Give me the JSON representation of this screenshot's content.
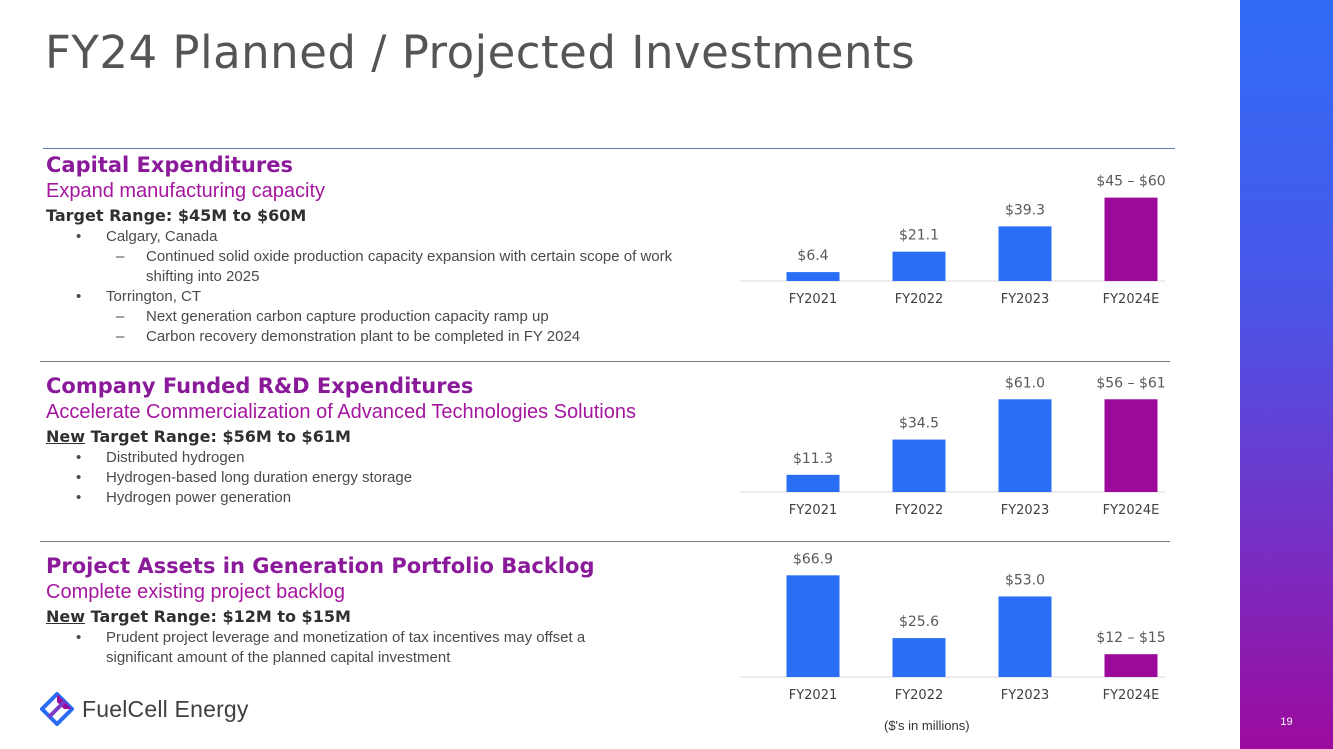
{
  "title": "FY24 Planned / Projected Investments",
  "page_number": "19",
  "colors": {
    "accent_blue": "#2a6ef5",
    "accent_purple": "#9b0a9b",
    "heading_purple": "#8b1a9b"
  },
  "sections": [
    {
      "heading": "Capital Expenditures",
      "subheading": "Expand manufacturing capacity",
      "target": "Target Range: $45M to $60M",
      "bullets": [
        {
          "text": "Calgary, Canada",
          "sub": [
            "Continued solid oxide production capacity expansion with certain scope of work shifting into 2025"
          ]
        },
        {
          "text": "Torrington, CT",
          "sub": [
            "Next generation carbon capture production capacity ramp up",
            "Carbon recovery demonstration plant to be completed in FY 2024"
          ]
        }
      ]
    },
    {
      "heading": "Company Funded R&D Expenditures",
      "subheading": "Accelerate Commercialization of Advanced Technologies Solutions",
      "target_new": "New",
      "target": "Target Range: $56M to $61M",
      "bullets": [
        {
          "text": "Distributed hydrogen"
        },
        {
          "text": "Hydrogen-based long duration energy storage"
        },
        {
          "text": "Hydrogen power generation"
        }
      ]
    },
    {
      "heading": "Project Assets in Generation Portfolio Backlog",
      "subheading": "Complete existing project backlog",
      "target_new": "New",
      "target": "Target Range: $12M to $15M",
      "bullets": [
        {
          "text": "Prudent project leverage and monetization of tax incentives may offset a significant amount of the planned capital investment"
        }
      ]
    }
  ],
  "chart_data": [
    {
      "type": "bar",
      "title": "Capital Expenditures",
      "categories": [
        "FY2021",
        "FY2022",
        "FY2023",
        "FY2024E"
      ],
      "values": [
        6.4,
        21.1,
        39.3,
        60
      ],
      "labels": [
        "$6.4",
        "$21.1",
        "$39.3",
        "$45 – $60"
      ],
      "colors": [
        "#2a6ef5",
        "#2a6ef5",
        "#2a6ef5",
        "#9b0a9b"
      ],
      "ylim": [
        0,
        70
      ]
    },
    {
      "type": "bar",
      "title": "Company Funded R&D Expenditures",
      "categories": [
        "FY2021",
        "FY2022",
        "FY2023",
        "FY2024E"
      ],
      "values": [
        11.3,
        34.5,
        61.0,
        61
      ],
      "labels": [
        "$11.3",
        "$34.5",
        "$61.0",
        "$56 – $61"
      ],
      "colors": [
        "#2a6ef5",
        "#2a6ef5",
        "#2a6ef5",
        "#9b0a9b"
      ],
      "ylim": [
        0,
        70
      ]
    },
    {
      "type": "bar",
      "title": "Project Assets in Generation Portfolio Backlog",
      "categories": [
        "FY2021",
        "FY2022",
        "FY2023",
        "FY2024E"
      ],
      "values": [
        66.9,
        25.6,
        53.0,
        15
      ],
      "labels": [
        "$66.9",
        "$25.6",
        "$53.0",
        "$12 – $15"
      ],
      "colors": [
        "#2a6ef5",
        "#2a6ef5",
        "#2a6ef5",
        "#9b0a9b"
      ],
      "ylim": [
        0,
        70
      ]
    }
  ],
  "footnote": "($'s in millions)",
  "logo": {
    "text": "FuelCell Energy",
    "icon": "fuelcell-logo-icon"
  }
}
